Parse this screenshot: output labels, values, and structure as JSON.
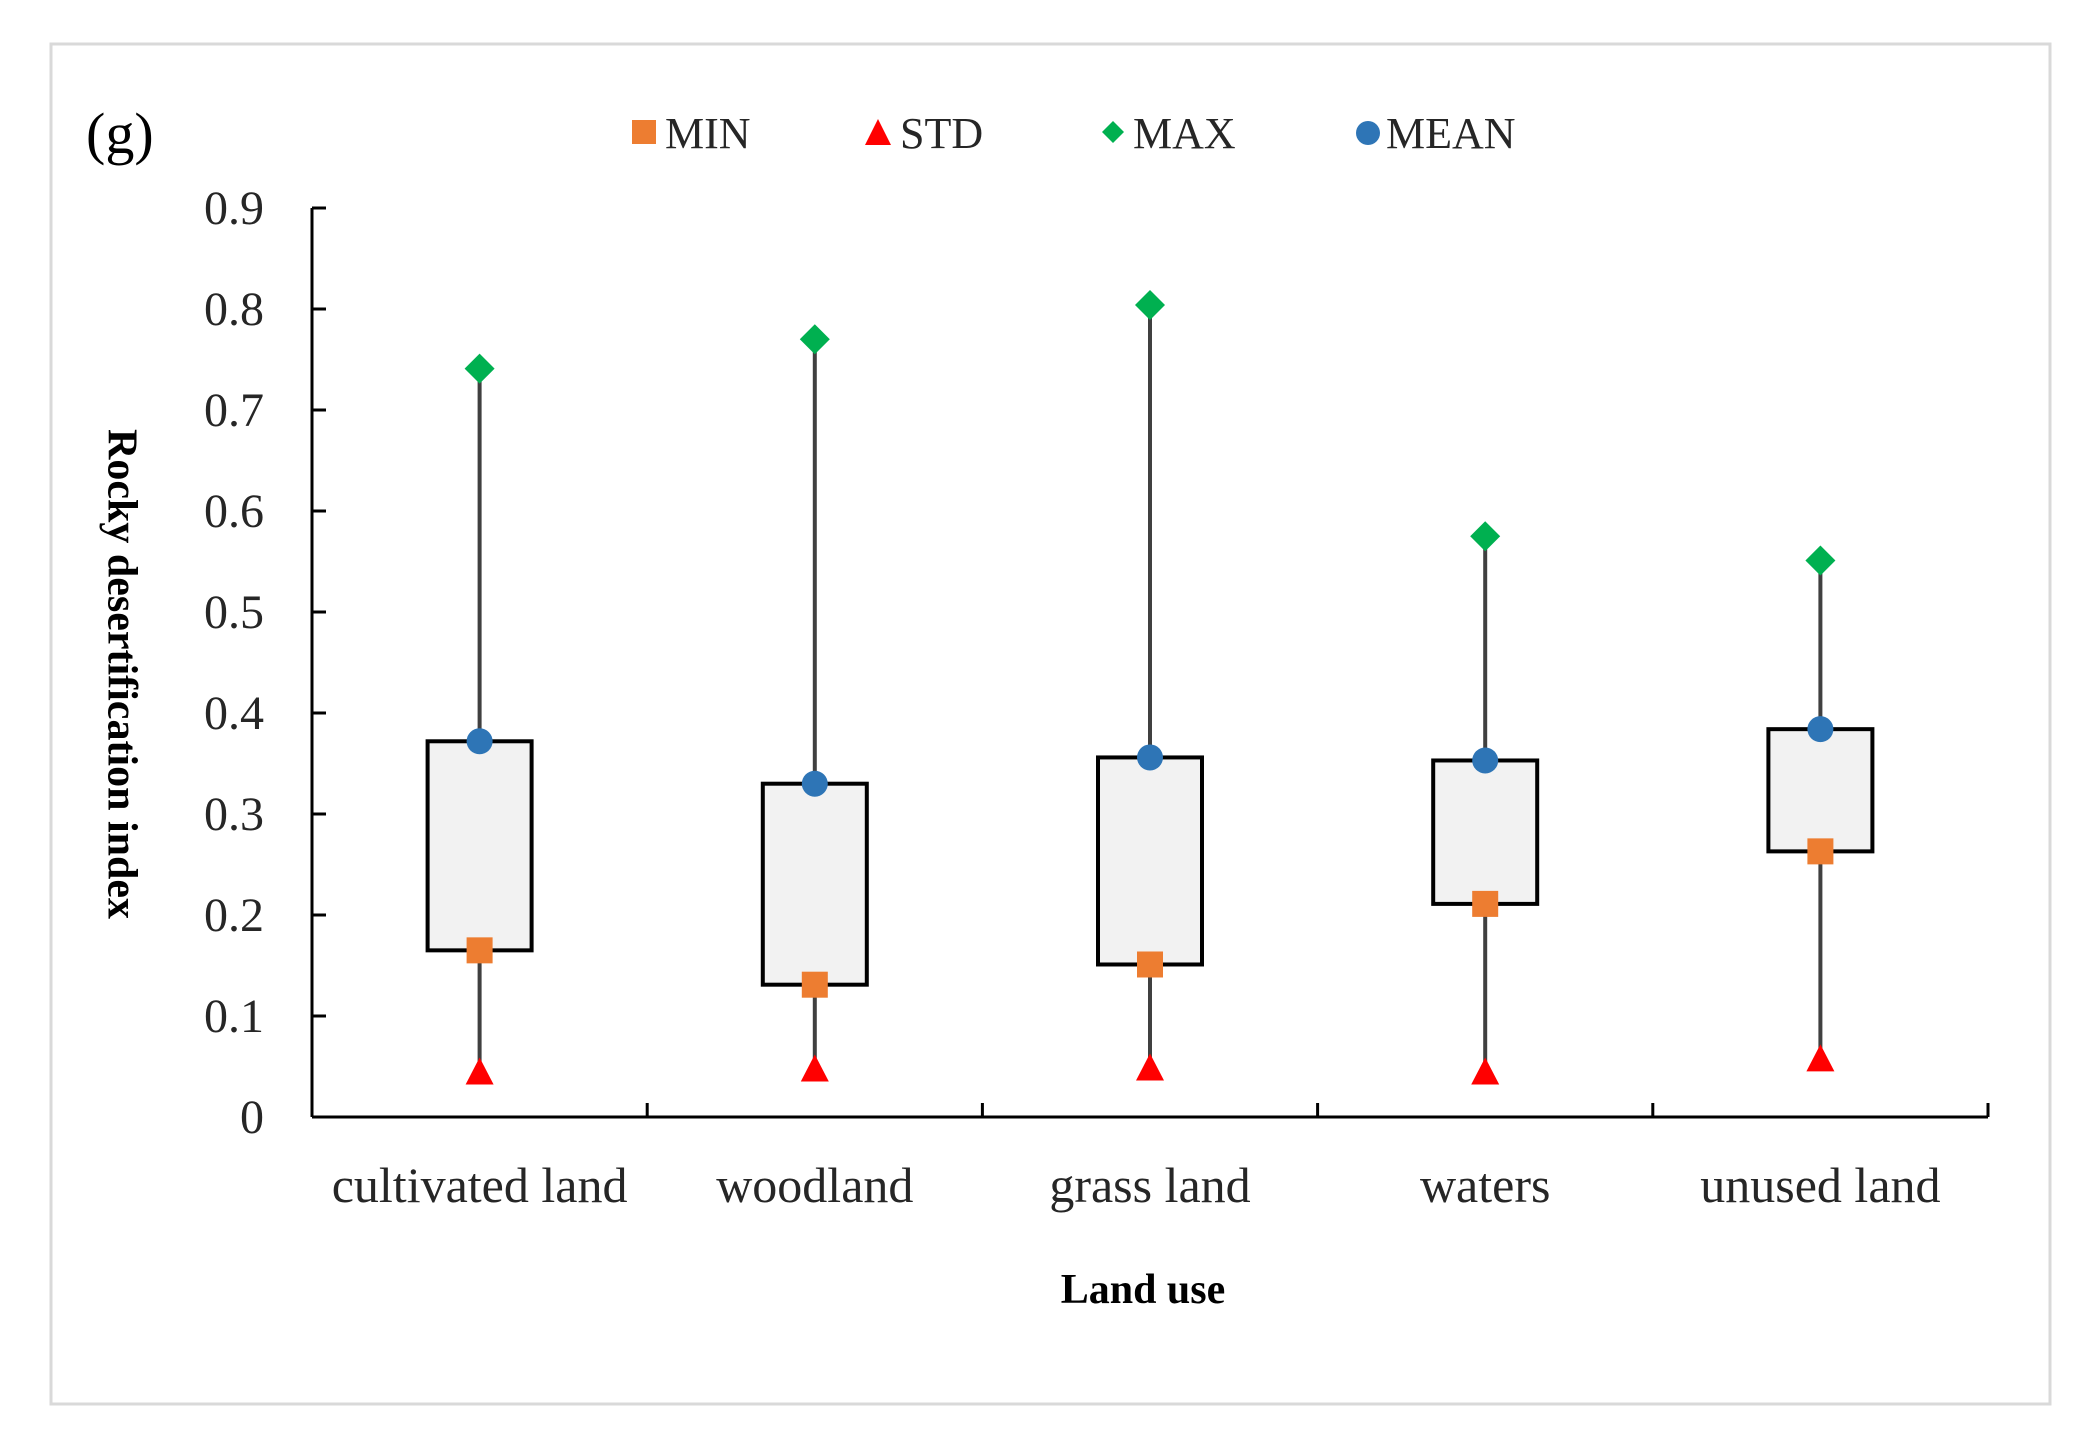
{
  "chart_data": {
    "type": "box",
    "panel_label": "(g)",
    "xlabel": "Land use",
    "ylabel": "Rocky desertification index",
    "ylim": [
      0,
      0.9
    ],
    "yticks": [
      "0",
      "0.1",
      "0.2",
      "0.3",
      "0.4",
      "0.5",
      "0.6",
      "0.7",
      "0.8",
      "0.9"
    ],
    "categories": [
      "cultivated land",
      "woodland",
      "grass land",
      "waters",
      "unused land"
    ],
    "series": [
      {
        "name": "MIN",
        "marker": "square",
        "color": "#ED7D31",
        "values": [
          0.165,
          0.131,
          0.151,
          0.211,
          0.263
        ]
      },
      {
        "name": "STD",
        "marker": "triangle",
        "color": "#FF0000",
        "values": [
          0.045,
          0.048,
          0.049,
          0.045,
          0.058
        ]
      },
      {
        "name": "MAX",
        "marker": "diamond",
        "color": "#00B050",
        "values": [
          0.741,
          0.77,
          0.804,
          0.575,
          0.551
        ]
      },
      {
        "name": "MEAN",
        "marker": "circle",
        "color": "#2E75B6",
        "values": [
          0.372,
          0.33,
          0.356,
          0.353,
          0.384
        ]
      }
    ],
    "legend_position": "top",
    "grid": false
  }
}
